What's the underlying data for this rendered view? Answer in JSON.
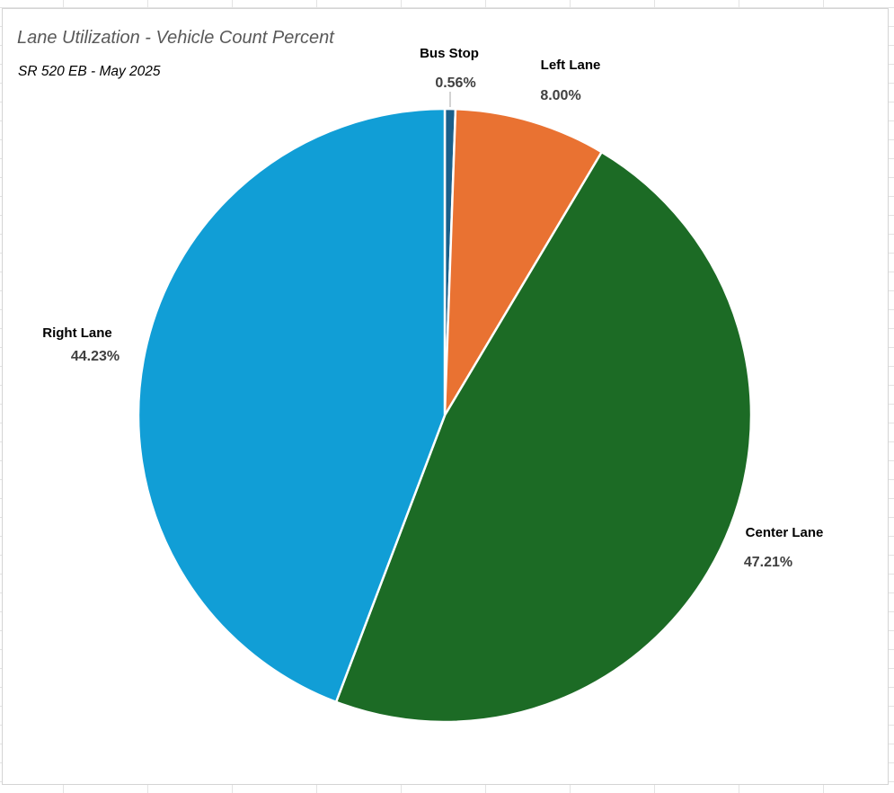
{
  "chart_data": {
    "type": "pie",
    "title": "Lane Utilization - Vehicle Count Percent",
    "subtitle": "SR 520 EB - May 2025",
    "start_angle_deg": 0,
    "slices": [
      {
        "name": "Bus Stop",
        "value": 0.56,
        "label": "0.56%",
        "color": "#1a5f8a"
      },
      {
        "name": "Left Lane",
        "value": 8.0,
        "label": "8.00%",
        "color": "#e97232"
      },
      {
        "name": "Center Lane",
        "value": 47.21,
        "label": "47.21%",
        "color": "#1c6b25"
      },
      {
        "name": "Right Lane",
        "value": 44.23,
        "label": "44.23%",
        "color": "#119ed6"
      }
    ]
  }
}
